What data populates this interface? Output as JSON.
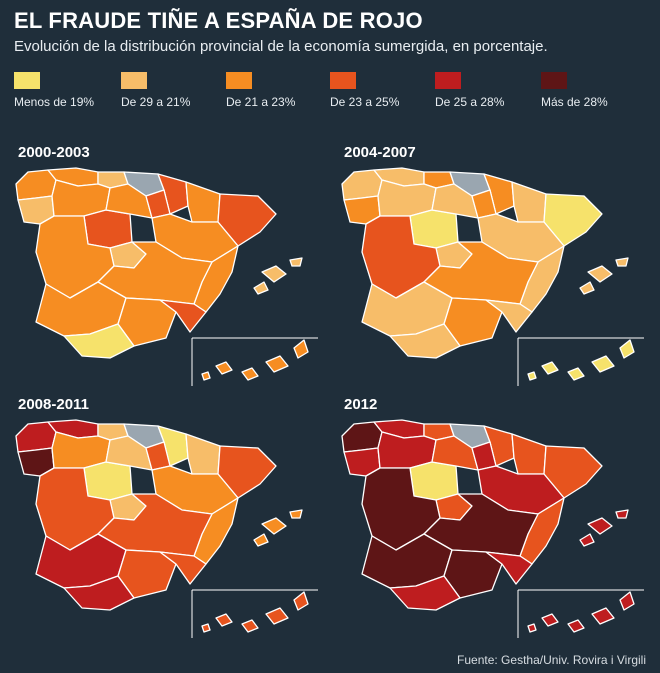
{
  "header": {
    "title": "EL FRAUDE TIÑE A ESPAÑA DE ROJO",
    "subtitle": "Evolución de la distribución provincial de la economía sumergida, en porcentaje."
  },
  "legend": [
    {
      "label": "Menos de 19%",
      "color": "#f6e26b"
    },
    {
      "label": "De 29 a 21%",
      "color": "#f7bd69"
    },
    {
      "label": "De 21 a 23%",
      "color": "#f68d22"
    },
    {
      "label": "De 23 a 25%",
      "color": "#e7541e"
    },
    {
      "label": "De 25 a 28%",
      "color": "#be1d1f"
    },
    {
      "label": "Más de 28%",
      "color": "#5e1516"
    }
  ],
  "no_data_color": "#9aa6b0",
  "maps": [
    {
      "label": "2000-2003",
      "regions": {
        "galicia_n": 2,
        "galicia_s": 1,
        "asturias": 2,
        "cantabria": 1,
        "basque": 6,
        "navarra": 3,
        "aragon_n": 2,
        "catalonia": 3,
        "cyl_n": 2,
        "cyl_c": 3,
        "cyl_e": 2,
        "rioja": 3,
        "aragon_s": 2,
        "valencia": 2,
        "madrid": 1,
        "extremadura": 2,
        "clm": 2,
        "andalucia_w": 2,
        "andalucia_e": 2,
        "murcia": 3,
        "andalucia_s": 0,
        "balearic": 1,
        "canary": 2
      }
    },
    {
      "label": "2004-2007",
      "regions": {
        "galicia_n": 1,
        "galicia_s": 2,
        "asturias": 1,
        "cantabria": 2,
        "basque": 6,
        "navarra": 2,
        "aragon_n": 1,
        "catalonia": 0,
        "cyl_n": 1,
        "cyl_c": 0,
        "cyl_e": 1,
        "rioja": 2,
        "aragon_s": 1,
        "valencia": 1,
        "madrid": 1,
        "extremadura": 3,
        "clm": 2,
        "andalucia_w": 1,
        "andalucia_e": 2,
        "murcia": 1,
        "andalucia_s": 1,
        "balearic": 1,
        "canary": 0
      }
    },
    {
      "label": "2008-2011",
      "regions": {
        "galicia_n": 4,
        "galicia_s": 5,
        "asturias": 4,
        "cantabria": 1,
        "basque": 6,
        "navarra": 0,
        "aragon_n": 1,
        "catalonia": 3,
        "cyl_n": 2,
        "cyl_c": 0,
        "cyl_e": 1,
        "rioja": 3,
        "aragon_s": 2,
        "valencia": 2,
        "madrid": 1,
        "extremadura": 3,
        "clm": 3,
        "andalucia_w": 4,
        "andalucia_e": 3,
        "murcia": 3,
        "andalucia_s": 4,
        "balearic": 2,
        "canary": 3
      }
    },
    {
      "label": "2012",
      "regions": {
        "galicia_n": 5,
        "galicia_s": 4,
        "asturias": 4,
        "cantabria": 3,
        "basque": 6,
        "navarra": 3,
        "aragon_n": 3,
        "catalonia": 3,
        "cyl_n": 4,
        "cyl_c": 0,
        "cyl_e": 3,
        "rioja": 4,
        "aragon_s": 4,
        "valencia": 3,
        "madrid": 3,
        "extremadura": 5,
        "clm": 5,
        "andalucia_w": 5,
        "andalucia_e": 5,
        "murcia": 4,
        "andalucia_s": 4,
        "balearic": 4,
        "canary": 4
      }
    }
  ],
  "source": "Fuente: Gestha/Univ. Rovira i Virgili"
}
